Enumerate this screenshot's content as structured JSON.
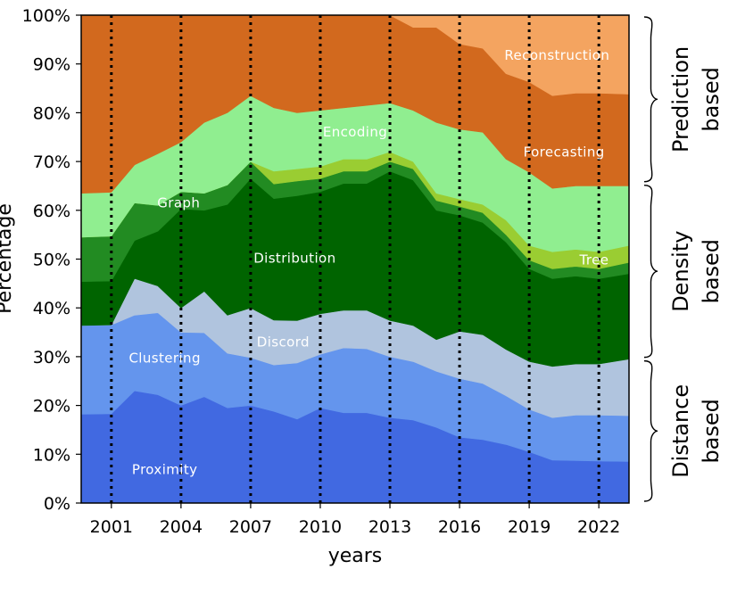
{
  "chart_data": {
    "type": "area",
    "stacked": true,
    "normalized_percent": true,
    "xlabel": "years",
    "ylabel": "Percentage",
    "xlim": [
      1999.7,
      2023.3
    ],
    "ylim": [
      0,
      100
    ],
    "x_ticks": [
      2001,
      2004,
      2007,
      2010,
      2013,
      2016,
      2019,
      2022
    ],
    "y_ticks": [
      0,
      10,
      20,
      30,
      40,
      50,
      60,
      70,
      80,
      90,
      100
    ],
    "y_tick_suffix": "%",
    "vlines": [
      2001,
      2004,
      2007,
      2010,
      2013,
      2016,
      2019,
      2022
    ],
    "x": [
      1999.7,
      2001,
      2002,
      2003,
      2004,
      2005,
      2006,
      2007,
      2008,
      2009,
      2010,
      2011,
      2012,
      2013,
      2014,
      2015,
      2016,
      2017,
      2018,
      2019,
      2020,
      2021,
      2022,
      2023.3
    ],
    "series": [
      {
        "name": "Proximity",
        "label": "Proximity",
        "color": "#4169e1",
        "values": [
          18.2,
          18.3,
          23,
          22.2,
          20,
          21.8,
          19.5,
          20,
          18.8,
          17.2,
          19.5,
          18.5,
          18.5,
          17.5,
          17,
          15.5,
          13.5,
          13,
          12,
          10.5,
          8.8,
          8.7,
          8.6,
          8.5
        ]
      },
      {
        "name": "Clustering",
        "label": "Clustering",
        "color": "#6495ed",
        "values": [
          18.2,
          18.2,
          15.5,
          16.8,
          15,
          13.1,
          11.2,
          9.8,
          9.5,
          11.5,
          11,
          13.3,
          13.1,
          12.5,
          12,
          11.5,
          12,
          11.5,
          10,
          8.7,
          8.7,
          9.3,
          9.4,
          9.4
        ]
      },
      {
        "name": "Discord",
        "label": "Discord",
        "color": "#b0c4de",
        "values": [
          0,
          0,
          7.5,
          5.5,
          5,
          8.5,
          7.8,
          10.2,
          9.2,
          8.7,
          8.3,
          7.7,
          7.9,
          7.4,
          7.4,
          6.5,
          9.7,
          10,
          9.5,
          9.8,
          10.5,
          10.5,
          10.5,
          11.6
        ]
      },
      {
        "name": "Distribution",
        "label": "Distribution",
        "color": "#006400",
        "values": [
          9,
          9,
          7.8,
          11.2,
          20.3,
          16.6,
          22.7,
          26.5,
          24.9,
          25.6,
          25,
          26,
          26,
          30.6,
          29.8,
          26.5,
          23.8,
          23,
          22,
          19,
          18,
          18,
          17.5,
          17.5
        ]
      },
      {
        "name": "Graph",
        "label": "Graph",
        "color": "#228b22",
        "values": [
          9.1,
          9.2,
          7.7,
          5.3,
          3.5,
          3.5,
          4,
          3.5,
          3,
          3,
          2.7,
          2.5,
          2.5,
          2,
          2.3,
          2,
          1.8,
          2,
          1.5,
          1.8,
          2,
          2,
          2,
          2.3
        ]
      },
      {
        "name": "Tree",
        "label": "Tree",
        "color": "#9acd32",
        "values": [
          0,
          0,
          0,
          0,
          0,
          0,
          0,
          0,
          2.6,
          2.5,
          2.5,
          2.5,
          2.5,
          2,
          1.5,
          1.5,
          1.5,
          1.7,
          3,
          3,
          3.5,
          3.5,
          3.5,
          3.5
        ]
      },
      {
        "name": "Encoding",
        "label": "Encoding",
        "color": "#90ee90",
        "values": [
          9,
          9,
          7.8,
          10.6,
          10.2,
          14.5,
          14.8,
          13.5,
          13,
          11.5,
          11.5,
          10.5,
          11,
          10,
          10.5,
          14.5,
          14.3,
          14.8,
          12.5,
          15,
          13,
          13,
          13.5,
          12.2
        ]
      },
      {
        "name": "Forecasting",
        "label": "Forecasting",
        "color": "#d2691e",
        "values": [
          36.5,
          36.3,
          30.7,
          28.4,
          26,
          22,
          20,
          16.5,
          19,
          20,
          19.5,
          19,
          18.5,
          18,
          17,
          19.5,
          17.5,
          17.2,
          17.5,
          18.5,
          19,
          19,
          19,
          18.8
        ]
      },
      {
        "name": "Reconstruction",
        "label": "Reconstruction",
        "color": "#f4a460",
        "values": [
          0,
          0,
          0,
          0,
          0,
          0,
          0,
          0,
          0,
          0,
          0,
          0,
          0,
          0,
          2.5,
          2.5,
          6,
          6.8,
          12,
          13.7,
          16.5,
          16,
          16,
          16.2
        ]
      }
    ],
    "groups": [
      {
        "name": "Distance based",
        "line1": "Distance",
        "line2": "based",
        "range": [
          0,
          29.5
        ]
      },
      {
        "name": "Density based",
        "line1": "Density",
        "line2": "based",
        "range": [
          29.5,
          65.5
        ]
      },
      {
        "name": "Prediction based",
        "line1": "Prediction",
        "line2": "based",
        "range": [
          65.5,
          100
        ]
      }
    ]
  }
}
